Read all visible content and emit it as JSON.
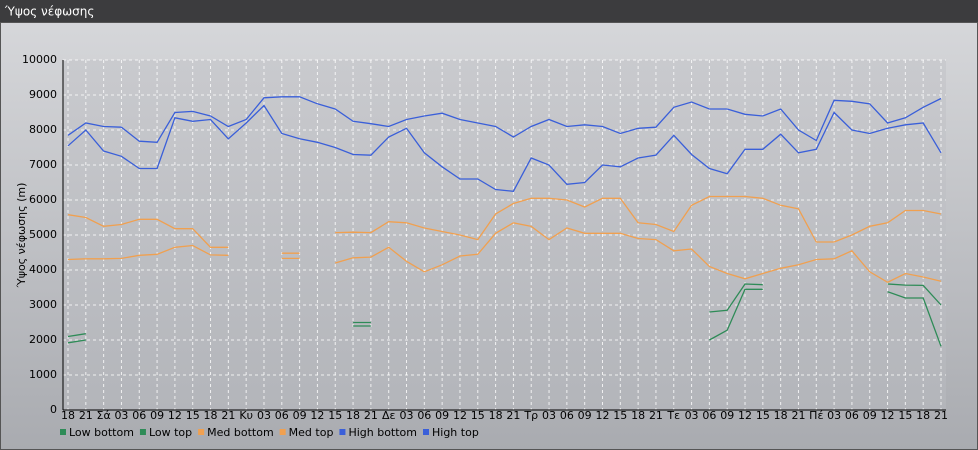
{
  "window_title": "Ύψος νέφωσης",
  "chart_data": {
    "type": "line",
    "y_label": "Ύψος νέφωσης (m)",
    "categories": [
      "18",
      "21",
      "Σά",
      "03",
      "06",
      "09",
      "12",
      "15",
      "18",
      "21",
      "Κυ",
      "03",
      "06",
      "09",
      "12",
      "15",
      "18",
      "21",
      "Δε",
      "03",
      "06",
      "09",
      "12",
      "15",
      "18",
      "21",
      "Τρ",
      "03",
      "06",
      "09",
      "12",
      "15",
      "18",
      "21",
      "Τε",
      "03",
      "06",
      "09",
      "12",
      "15",
      "18",
      "21",
      "Πέ",
      "03",
      "06",
      "09",
      "12",
      "15",
      "18",
      "21"
    ],
    "ylim": [
      0,
      10000
    ],
    "yticks": [
      0,
      1000,
      2000,
      3000,
      4000,
      5000,
      6000,
      7000,
      8000,
      9000,
      10000
    ],
    "grid": true,
    "legend": "bottom",
    "series": [
      {
        "name": "Low bottom",
        "color": "#2e8b57",
        "values": [
          1920,
          2000,
          null,
          null,
          null,
          null,
          null,
          null,
          null,
          null,
          null,
          null,
          null,
          null,
          null,
          null,
          2400,
          2400,
          null,
          null,
          null,
          null,
          null,
          null,
          null,
          null,
          null,
          null,
          null,
          null,
          null,
          null,
          null,
          null,
          null,
          null,
          2000,
          2280,
          3450,
          3450,
          null,
          null,
          null,
          null,
          null,
          null,
          3380,
          3200,
          3200,
          1820
        ]
      },
      {
        "name": "Low top",
        "color": "#2e8b57",
        "values": [
          2100,
          2180,
          null,
          null,
          null,
          null,
          null,
          null,
          null,
          null,
          null,
          null,
          null,
          null,
          null,
          null,
          2500,
          2500,
          null,
          null,
          null,
          null,
          null,
          null,
          null,
          null,
          null,
          null,
          null,
          null,
          null,
          null,
          null,
          null,
          null,
          null,
          2800,
          2850,
          3600,
          3580,
          null,
          null,
          null,
          null,
          null,
          null,
          3600,
          3570,
          3560,
          3000
        ]
      },
      {
        "name": "Med bottom",
        "color": "#f0a050",
        "values": [
          4300,
          4320,
          4320,
          4330,
          4420,
          4450,
          4650,
          4700,
          4430,
          4420,
          null,
          null,
          4330,
          4330,
          null,
          4200,
          4350,
          4370,
          4650,
          4250,
          3950,
          4150,
          4400,
          4450,
          5050,
          5350,
          5250,
          4870,
          5200,
          5050,
          5050,
          5050,
          4900,
          4870,
          4550,
          4600,
          4100,
          3900,
          3750,
          3900,
          4050,
          4150,
          4300,
          4320,
          4550,
          3950,
          3650,
          3900,
          3800,
          3680
        ]
      },
      {
        "name": "Med top",
        "color": "#f0a050",
        "values": [
          5580,
          5500,
          5250,
          5300,
          5450,
          5450,
          5180,
          5180,
          4650,
          4650,
          null,
          null,
          4480,
          4480,
          null,
          5070,
          5080,
          5070,
          5380,
          5350,
          5200,
          5100,
          5000,
          4870,
          5600,
          5900,
          6050,
          6050,
          6000,
          5800,
          6050,
          6050,
          5350,
          5300,
          5100,
          5850,
          6100,
          6100,
          6100,
          6050,
          5850,
          5750,
          4800,
          4800,
          5000,
          5250,
          5350,
          5700,
          5700,
          5600
        ]
      },
      {
        "name": "High bottom",
        "color": "#3a5fd9",
        "values": [
          7550,
          8000,
          7400,
          7250,
          6900,
          6900,
          8350,
          8250,
          8300,
          7750,
          8200,
          8700,
          7900,
          7750,
          7650,
          7500,
          7300,
          7280,
          7800,
          8050,
          7350,
          6950,
          6600,
          6600,
          6300,
          6250,
          7200,
          7000,
          6450,
          6500,
          7000,
          6950,
          7200,
          7280,
          7850,
          7300,
          6900,
          6750,
          7450,
          7450,
          7880,
          7350,
          7450,
          8500,
          8000,
          7900,
          8050,
          8150,
          8200,
          7350
        ]
      },
      {
        "name": "High top",
        "color": "#3a5fd9",
        "values": [
          7850,
          8200,
          8100,
          8080,
          7680,
          7650,
          8500,
          8530,
          8400,
          8100,
          8300,
          8920,
          8950,
          8950,
          8750,
          8600,
          8250,
          8180,
          8100,
          8300,
          8400,
          8480,
          8300,
          8200,
          8100,
          7800,
          8100,
          8300,
          8100,
          8150,
          8100,
          7900,
          8050,
          8080,
          8650,
          8800,
          8600,
          8600,
          8450,
          8400,
          8600,
          8000,
          7700,
          8850,
          8820,
          8750,
          8200,
          8350,
          8650,
          8900
        ]
      }
    ]
  }
}
